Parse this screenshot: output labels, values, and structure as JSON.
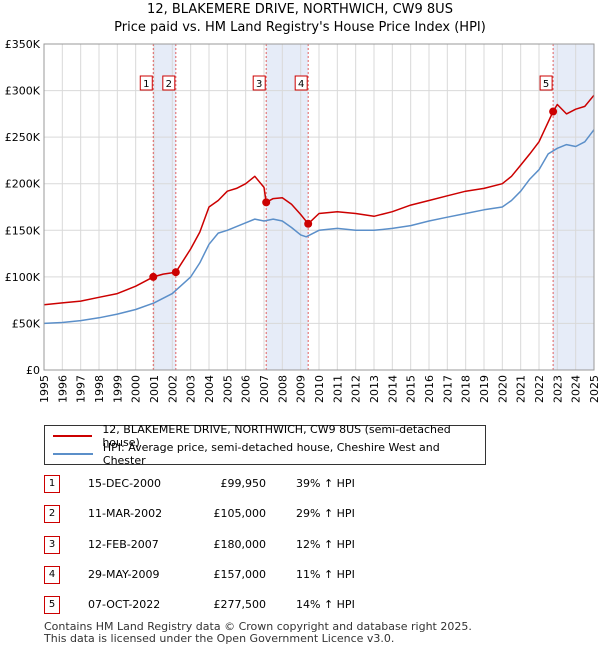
{
  "title_line1": "12, BLAKEMERE DRIVE, NORTHWICH, CW9 8US",
  "title_line2": "Price paid vs. HM Land Registry's House Price Index (HPI)",
  "legend": {
    "property_label": "12, BLAKEMERE DRIVE, NORTHWICH, CW9 8US (semi-detached house)",
    "hpi_label": "HPI: Average price, semi-detached house, Cheshire West and Chester"
  },
  "sales": [
    {
      "num": "1",
      "date": "15-DEC-2000",
      "price": "£99,950",
      "hpi": "39% ↑ HPI"
    },
    {
      "num": "2",
      "date": "11-MAR-2002",
      "price": "£105,000",
      "hpi": "29% ↑ HPI"
    },
    {
      "num": "3",
      "date": "12-FEB-2007",
      "price": "£180,000",
      "hpi": "12% ↑ HPI"
    },
    {
      "num": "4",
      "date": "29-MAY-2009",
      "price": "£157,000",
      "hpi": "11% ↑ HPI"
    },
    {
      "num": "5",
      "date": "07-OCT-2022",
      "price": "£277,500",
      "hpi": "14% ↑ HPI"
    }
  ],
  "footer_line1": "Contains HM Land Registry data © Crown copyright and database right 2025.",
  "footer_line2": "This data is licensed under the Open Government Licence v3.0.",
  "chart_data": {
    "type": "line",
    "x_range": [
      1995,
      2025
    ],
    "ylim": [
      0,
      350000
    ],
    "y_ticks": [
      "£0",
      "£50K",
      "£100K",
      "£150K",
      "£200K",
      "£250K",
      "£300K",
      "£350K"
    ],
    "y_tick_values": [
      0,
      50000,
      100000,
      150000,
      200000,
      250000,
      300000,
      350000
    ],
    "x_ticks": [
      "1995",
      "1996",
      "1997",
      "1998",
      "1999",
      "2000",
      "2001",
      "2002",
      "2003",
      "2004",
      "2005",
      "2006",
      "2007",
      "2008",
      "2009",
      "2010",
      "2011",
      "2012",
      "2013",
      "2014",
      "2015",
      "2016",
      "2017",
      "2018",
      "2019",
      "2020",
      "2021",
      "2022",
      "2023",
      "2024",
      "2025"
    ],
    "grid": true,
    "series": [
      {
        "name": "12, BLAKEMERE DRIVE, NORTHWICH, CW9 8US (semi-detached house)",
        "color": "#cc0000",
        "x": [
          1995.0,
          1996.0,
          1997.0,
          1998.0,
          1999.0,
          2000.0,
          2000.96,
          2001.5,
          2002.19,
          2003.0,
          2003.5,
          2004.0,
          2004.5,
          2005.0,
          2005.5,
          2006.0,
          2006.5,
          2007.0,
          2007.12,
          2007.5,
          2008.0,
          2008.5,
          2009.0,
          2009.41,
          2010.0,
          2011.0,
          2012.0,
          2013.0,
          2014.0,
          2015.0,
          2016.0,
          2017.0,
          2018.0,
          2019.0,
          2020.0,
          2020.5,
          2021.0,
          2021.5,
          2022.0,
          2022.77,
          2023.0,
          2023.5,
          2024.0,
          2024.5,
          2025.0
        ],
        "values": [
          70000,
          72000,
          74000,
          78000,
          82000,
          90000,
          99950,
          103000,
          105000,
          130000,
          148000,
          175000,
          182000,
          192000,
          195000,
          200000,
          208000,
          196000,
          180000,
          184000,
          185000,
          178000,
          167000,
          157000,
          168000,
          170000,
          168000,
          165000,
          170000,
          177000,
          182000,
          187000,
          192000,
          195000,
          200000,
          208000,
          220000,
          232000,
          245000,
          277500,
          285000,
          275000,
          280000,
          283000,
          295000
        ]
      },
      {
        "name": "HPI: Average price, semi-detached house, Cheshire West and Chester",
        "color": "#5b8fc9",
        "x": [
          1995.0,
          1996.0,
          1997.0,
          1998.0,
          1999.0,
          2000.0,
          2001.0,
          2002.0,
          2003.0,
          2003.5,
          2004.0,
          2004.5,
          2005.0,
          2005.5,
          2006.0,
          2006.5,
          2007.0,
          2007.5,
          2008.0,
          2008.5,
          2009.0,
          2009.3,
          2010.0,
          2011.0,
          2012.0,
          2013.0,
          2014.0,
          2015.0,
          2016.0,
          2017.0,
          2018.0,
          2019.0,
          2020.0,
          2020.5,
          2021.0,
          2021.5,
          2022.0,
          2022.5,
          2023.0,
          2023.5,
          2024.0,
          2024.5,
          2025.0
        ],
        "values": [
          50000,
          51000,
          53000,
          56000,
          60000,
          65000,
          72000,
          82000,
          100000,
          115000,
          135000,
          147000,
          150000,
          154000,
          158000,
          162000,
          160000,
          162000,
          160000,
          153000,
          145000,
          143000,
          150000,
          152000,
          150000,
          150000,
          152000,
          155000,
          160000,
          164000,
          168000,
          172000,
          175000,
          182000,
          192000,
          205000,
          215000,
          232000,
          238000,
          242000,
          240000,
          245000,
          258000
        ]
      }
    ],
    "sale_markers": [
      {
        "label": "1",
        "x": 2000.96,
        "value": 99950
      },
      {
        "label": "2",
        "x": 2002.19,
        "value": 105000
      },
      {
        "label": "3",
        "x": 2007.12,
        "value": 180000
      },
      {
        "label": "4",
        "x": 2009.41,
        "value": 157000
      },
      {
        "label": "5",
        "x": 2022.77,
        "value": 277500
      }
    ],
    "highlight_bands": [
      [
        2000.96,
        2002.19
      ],
      [
        2007.12,
        2009.41
      ],
      [
        2022.77,
        2025.0
      ]
    ]
  }
}
